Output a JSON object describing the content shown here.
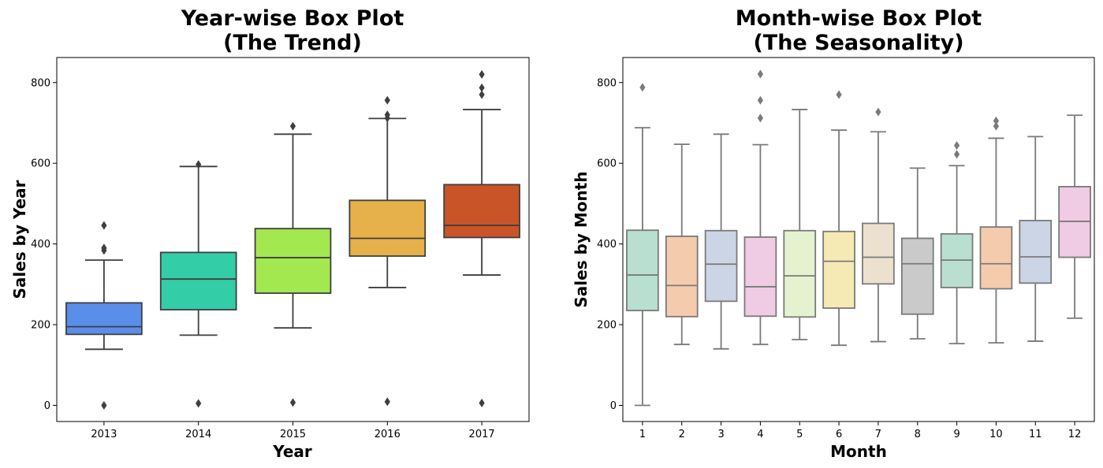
{
  "chart_data": [
    {
      "type": "box",
      "title_line1": "Year-wise Box Plot",
      "title_line2": "(The Trend)",
      "xlabel": "Year",
      "ylabel": "Sales by Year",
      "ylim": [
        -40,
        862
      ],
      "yticks": [
        "0",
        "200",
        "400",
        "600",
        "800"
      ],
      "yticks_values": [
        0,
        200,
        400,
        600,
        800
      ],
      "line_color": "#3f3f3f",
      "categories": [
        "2013",
        "2014",
        "2015",
        "2016",
        "2017"
      ],
      "boxes": [
        {
          "label": "2013",
          "color": "#5b8eea",
          "whisker_low": 139,
          "q1": 176,
          "median": 195,
          "q3": 254,
          "whisker_high": 360,
          "outliers": [
            0,
            384,
            390,
            446
          ]
        },
        {
          "label": "2014",
          "color": "#33cda8",
          "whisker_low": 174,
          "q1": 237,
          "median": 313,
          "q3": 379,
          "whisker_high": 592,
          "outliers": [
            5,
            597
          ]
        },
        {
          "label": "2015",
          "color": "#a3e84f",
          "whisker_low": 192,
          "q1": 278,
          "median": 366,
          "q3": 438,
          "whisker_high": 672,
          "outliers": [
            7,
            692
          ]
        },
        {
          "label": "2016",
          "color": "#e6b04a",
          "whisker_low": 292,
          "q1": 370,
          "median": 414,
          "q3": 508,
          "whisker_high": 711,
          "outliers": [
            9,
            712,
            720,
            756
          ]
        },
        {
          "label": "2017",
          "color": "#c95428",
          "whisker_low": 323,
          "q1": 416,
          "median": 446,
          "q3": 547,
          "whisker_high": 733,
          "outliers": [
            6,
            770,
            787,
            820
          ]
        }
      ]
    },
    {
      "type": "box",
      "title_line1": "Month-wise Box Plot",
      "title_line2": "(The Seasonality)",
      "xlabel": "Month",
      "ylabel": "Sales by Month",
      "ylim": [
        -40,
        862
      ],
      "yticks": [
        "0",
        "200",
        "400",
        "600",
        "800"
      ],
      "yticks_values": [
        0,
        200,
        400,
        600,
        800
      ],
      "line_color": "#7a7a7a",
      "categories": [
        "1",
        "2",
        "3",
        "4",
        "5",
        "6",
        "7",
        "8",
        "9",
        "10",
        "11",
        "12"
      ],
      "boxes": [
        {
          "label": "1",
          "color": "#b8dfcf",
          "whisker_low": 0,
          "q1": 235,
          "median": 323,
          "q3": 434,
          "whisker_high": 688,
          "outliers": [
            788
          ]
        },
        {
          "label": "2",
          "color": "#f5cbad",
          "whisker_low": 151,
          "q1": 220,
          "median": 297,
          "q3": 419,
          "whisker_high": 647,
          "outliers": []
        },
        {
          "label": "3",
          "color": "#ccd5e5",
          "whisker_low": 140,
          "q1": 258,
          "median": 350,
          "q3": 433,
          "whisker_high": 672,
          "outliers": []
        },
        {
          "label": "4",
          "color": "#f0cbe4",
          "whisker_low": 151,
          "q1": 221,
          "median": 294,
          "q3": 417,
          "whisker_high": 646,
          "outliers": [
            712,
            756,
            821
          ]
        },
        {
          "label": "5",
          "color": "#e4f2d0",
          "whisker_low": 163,
          "q1": 219,
          "median": 321,
          "q3": 433,
          "whisker_high": 733,
          "outliers": []
        },
        {
          "label": "6",
          "color": "#f6eab4",
          "whisker_low": 149,
          "q1": 241,
          "median": 357,
          "q3": 431,
          "whisker_high": 682,
          "outliers": [
            770
          ]
        },
        {
          "label": "7",
          "color": "#ece1cf",
          "whisker_low": 158,
          "q1": 301,
          "median": 367,
          "q3": 451,
          "whisker_high": 678,
          "outliers": [
            727
          ]
        },
        {
          "label": "8",
          "color": "#cacaca",
          "whisker_low": 165,
          "q1": 226,
          "median": 351,
          "q3": 414,
          "whisker_high": 588,
          "outliers": []
        },
        {
          "label": "9",
          "color": "#b8dfcf",
          "whisker_low": 153,
          "q1": 292,
          "median": 360,
          "q3": 425,
          "whisker_high": 594,
          "outliers": [
            622,
            644
          ]
        },
        {
          "label": "10",
          "color": "#f5cbad",
          "whisker_low": 155,
          "q1": 289,
          "median": 351,
          "q3": 442,
          "whisker_high": 662,
          "outliers": [
            692,
            705
          ]
        },
        {
          "label": "11",
          "color": "#ccd5e5",
          "whisker_low": 159,
          "q1": 303,
          "median": 368,
          "q3": 458,
          "whisker_high": 666,
          "outliers": []
        },
        {
          "label": "12",
          "color": "#f0cbe4",
          "whisker_low": 216,
          "q1": 367,
          "median": 456,
          "q3": 542,
          "whisker_high": 719,
          "outliers": []
        }
      ]
    }
  ]
}
